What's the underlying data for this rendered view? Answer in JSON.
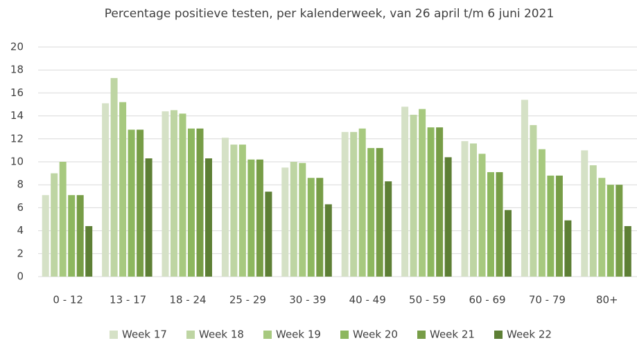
{
  "chart_data": {
    "type": "bar",
    "title": "Percentage positieve testen, per kalenderweek, van 26 april t/m 6 juni 2021",
    "categories": [
      "0 - 12",
      "13 - 17",
      "18 - 24",
      "25 - 29",
      "30 - 39",
      "40 - 49",
      "50 - 59",
      "60 - 69",
      "70 - 79",
      "80+"
    ],
    "series": [
      {
        "name": "Week 17",
        "color": "#d5e1c6",
        "values": [
          7.1,
          15.1,
          14.4,
          12.1,
          9.5,
          12.6,
          14.8,
          11.8,
          15.4,
          11.0
        ]
      },
      {
        "name": "Week 18",
        "color": "#bed5a3",
        "values": [
          9.0,
          17.3,
          14.5,
          11.5,
          10.0,
          12.6,
          14.1,
          11.6,
          13.2,
          9.7
        ]
      },
      {
        "name": "Week 19",
        "color": "#a7c97f",
        "values": [
          10.0,
          15.2,
          14.2,
          11.5,
          9.9,
          12.9,
          14.6,
          10.7,
          11.1,
          8.6
        ]
      },
      {
        "name": "Week 20",
        "color": "#8db75f",
        "values": [
          7.1,
          12.8,
          12.9,
          10.2,
          8.6,
          11.2,
          13.0,
          9.1,
          8.8,
          8.0
        ]
      },
      {
        "name": "Week 21",
        "color": "#779d47",
        "values": [
          7.1,
          12.8,
          12.9,
          10.2,
          8.6,
          11.2,
          13.0,
          9.1,
          8.8,
          8.0
        ]
      },
      {
        "name": "Week 22",
        "color": "#5d7f35",
        "values": [
          4.4,
          10.3,
          10.3,
          7.4,
          6.3,
          8.3,
          10.4,
          5.8,
          4.9,
          4.4
        ]
      }
    ],
    "ylim": [
      0,
      20
    ],
    "yticks": [
      0,
      2,
      4,
      6,
      8,
      10,
      12,
      14,
      16,
      18,
      20
    ],
    "grid": true,
    "legend": "bottom"
  }
}
